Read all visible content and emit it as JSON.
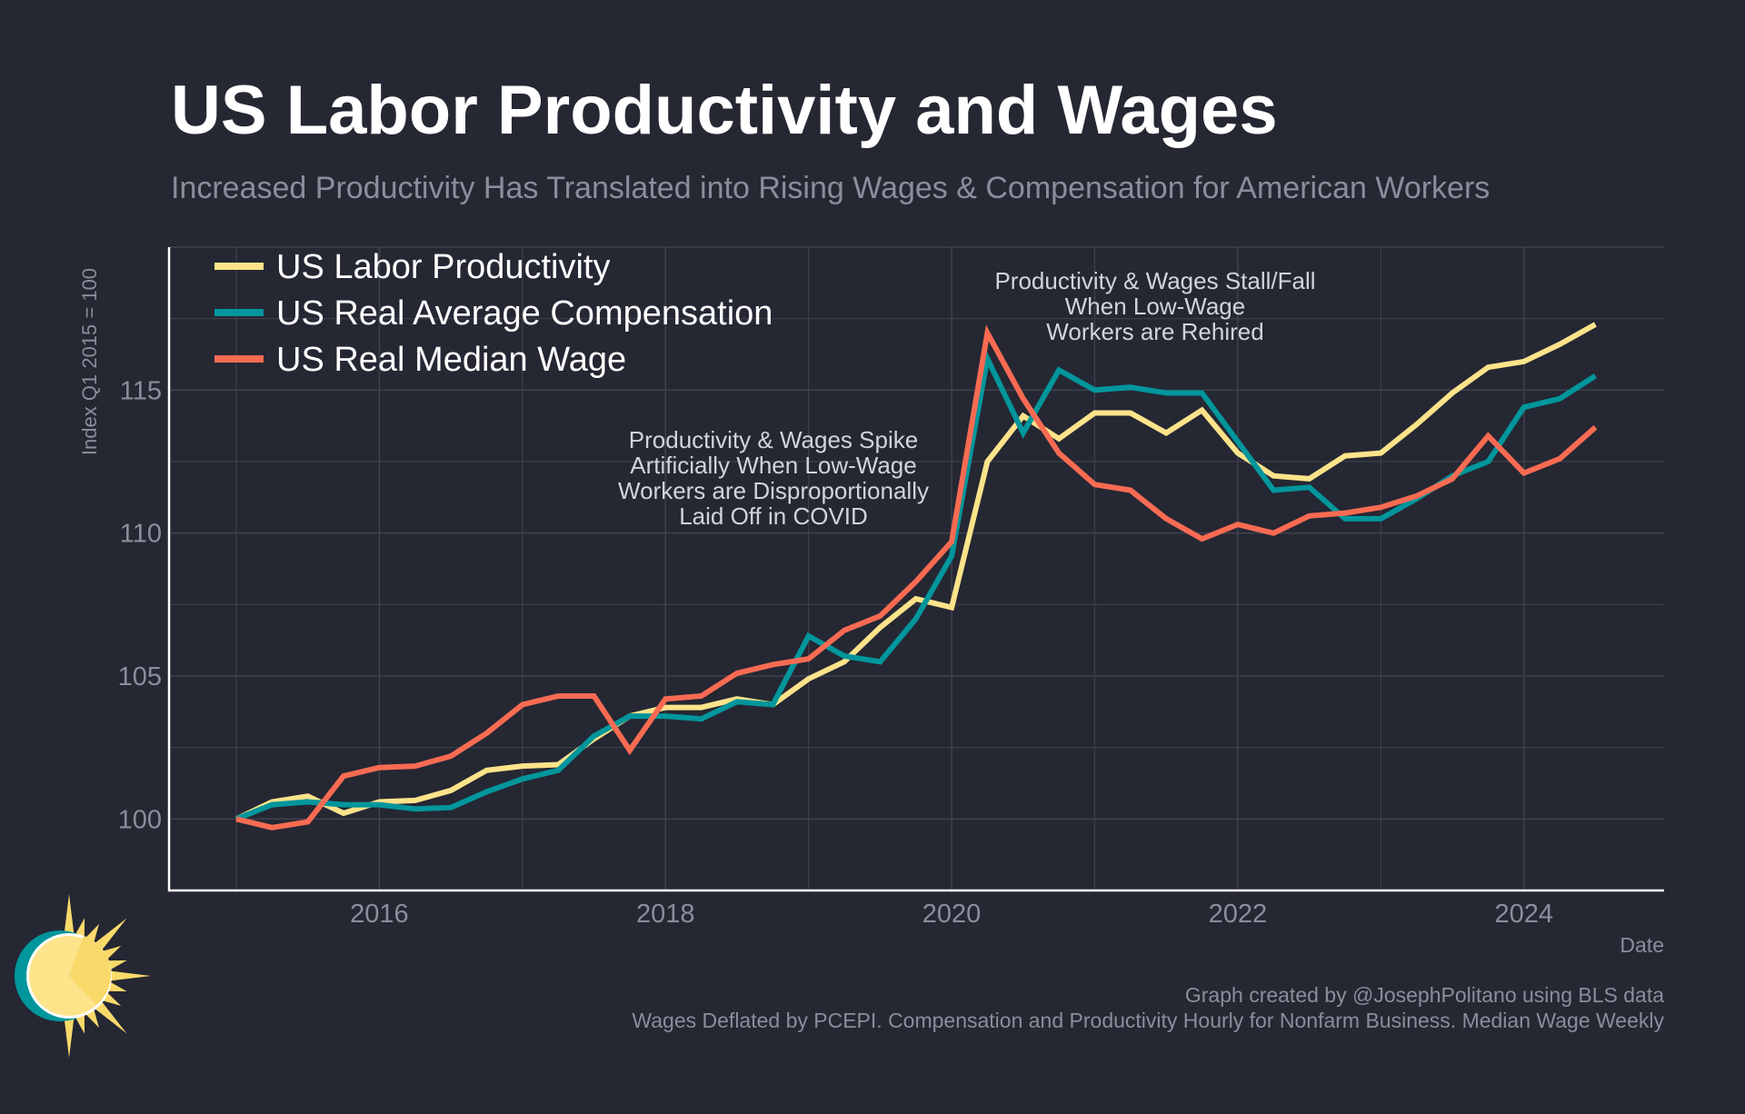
{
  "title": "US Labor Productivity and Wages",
  "subtitle": "Increased Productivity Has Translated into Rising Wages & Compensation for American Workers",
  "footer": {
    "credit": "Graph created by @JosephPolitano using BLS data",
    "note": "Wages Deflated by PCEPI. Compensation and Productivity Hourly for Nonfarm Business. Median Wage Weekly"
  },
  "logo": "sun-logo",
  "colors": {
    "background": "#252733",
    "productivity": "#fde38a",
    "compensation": "#00969c",
    "median_wage": "#f86b52",
    "grid": "#3e404c"
  },
  "chart_data": {
    "type": "line",
    "xlabel": "Date",
    "ylabel": "Index Q1 2015 = 100",
    "xlim": [
      2014.53,
      2024.98
    ],
    "ylim": [
      97.5,
      120
    ],
    "x_ticks": [
      2016,
      2018,
      2020,
      2022,
      2024
    ],
    "x_tick_labels": [
      "2016",
      "2018",
      "2020",
      "2022",
      "2024"
    ],
    "y_ticks": [
      100,
      105,
      110,
      115
    ],
    "y_tick_labels": [
      "100",
      "105",
      "110",
      "115"
    ],
    "grid": true,
    "legend_position": "top-left",
    "x_start": "2015 Q1",
    "x_frequency": "quarterly",
    "x": [
      "2015Q1",
      "2015Q2",
      "2015Q3",
      "2015Q4",
      "2016Q1",
      "2016Q2",
      "2016Q3",
      "2016Q4",
      "2017Q1",
      "2017Q2",
      "2017Q3",
      "2017Q4",
      "2018Q1",
      "2018Q2",
      "2018Q3",
      "2018Q4",
      "2019Q1",
      "2019Q2",
      "2019Q3",
      "2019Q4",
      "2020Q1",
      "2020Q2",
      "2020Q3",
      "2020Q4",
      "2021Q1",
      "2021Q2",
      "2021Q3",
      "2021Q4",
      "2022Q1",
      "2022Q2",
      "2022Q3",
      "2022Q4",
      "2023Q1",
      "2023Q2",
      "2023Q3",
      "2023Q4",
      "2024Q1",
      "2024Q2",
      "2024Q3"
    ],
    "series": [
      {
        "name": "US Labor Productivity",
        "color": "#fde38a",
        "values": [
          100.0,
          100.6,
          100.8,
          100.2,
          100.6,
          100.65,
          101.0,
          101.7,
          101.85,
          101.9,
          102.8,
          103.6,
          103.9,
          103.9,
          104.2,
          104.0,
          104.9,
          105.5,
          106.7,
          107.7,
          107.4,
          112.5,
          114.1,
          113.3,
          114.2,
          114.2,
          113.5,
          114.3,
          112.8,
          112.0,
          111.9,
          112.7,
          112.8,
          113.8,
          114.9,
          115.8,
          116.0,
          116.6,
          117.3
        ]
      },
      {
        "name": "US Real Average Compensation",
        "color": "#00969c",
        "values": [
          100.0,
          100.5,
          100.6,
          100.5,
          100.5,
          100.35,
          100.4,
          100.95,
          101.4,
          101.7,
          102.9,
          103.6,
          103.6,
          103.5,
          104.1,
          104.0,
          106.4,
          105.7,
          105.5,
          107.0,
          109.2,
          116.1,
          113.5,
          115.7,
          115.0,
          115.1,
          114.9,
          114.9,
          113.2,
          111.5,
          111.6,
          110.5,
          110.5,
          111.2,
          112.0,
          112.5,
          114.4,
          114.7,
          115.5
        ]
      },
      {
        "name": "US Real Median Wage",
        "color": "#f86b52",
        "values": [
          100.0,
          99.7,
          99.9,
          101.5,
          101.8,
          101.85,
          102.2,
          103.0,
          104.0,
          104.3,
          104.3,
          102.4,
          104.2,
          104.3,
          105.1,
          105.4,
          105.6,
          106.6,
          107.1,
          108.3,
          109.7,
          117.0,
          114.7,
          112.8,
          111.7,
          111.5,
          110.5,
          109.8,
          110.3,
          110.0,
          110.6,
          110.7,
          110.9,
          111.3,
          111.9,
          113.4,
          112.1,
          112.6,
          113.7
        ]
      }
    ],
    "annotations": [
      {
        "lines": [
          "Productivity & Wages Spike",
          "Artificially When Low-Wage",
          "Workers are Disproportionally",
          "Laid Off in COVID"
        ]
      },
      {
        "lines": [
          "Productivity & Wages Stall/Fall",
          "When Low-Wage",
          "Workers are Rehired"
        ]
      }
    ]
  }
}
